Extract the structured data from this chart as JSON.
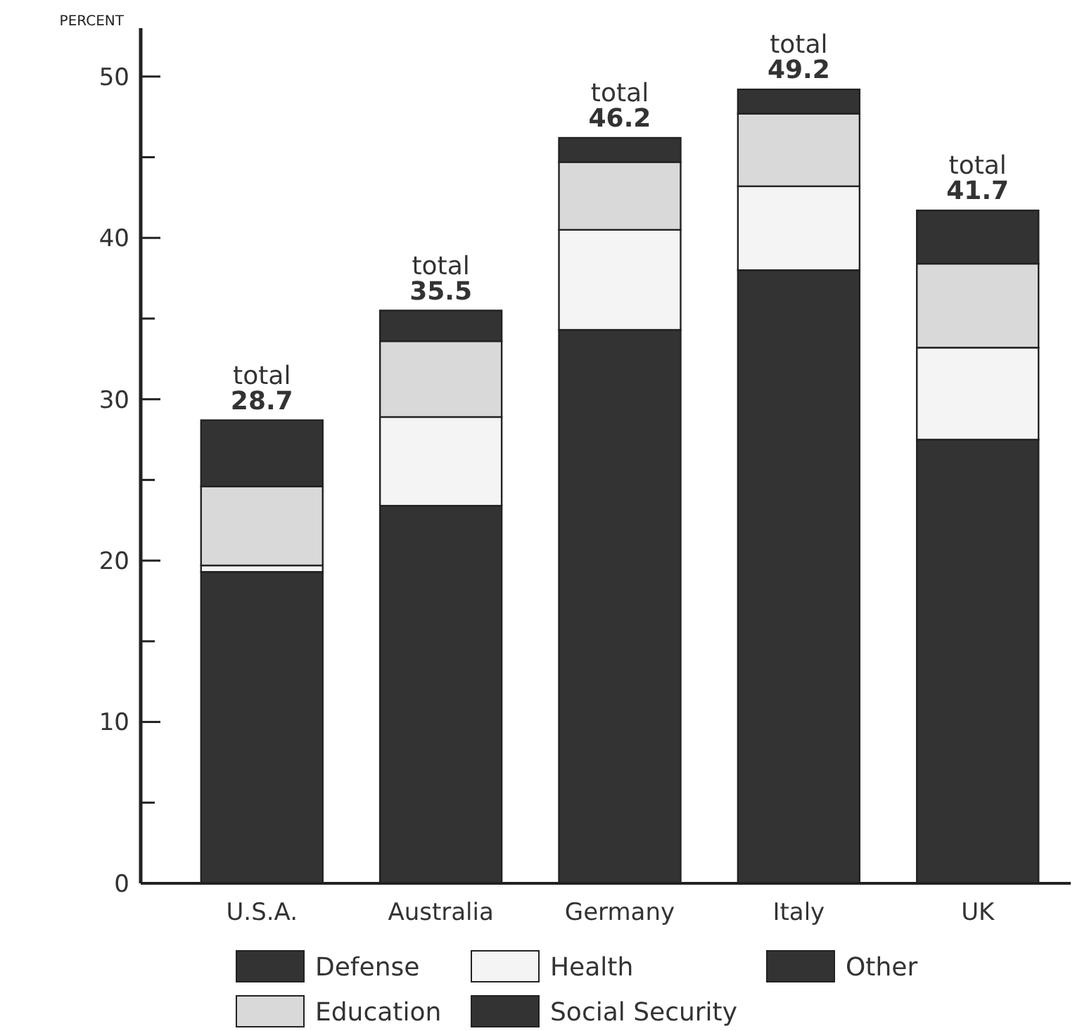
{
  "chart_data": {
    "type": "bar",
    "stacked": true,
    "ylabel": "PERCENT",
    "categories": [
      "U.S.A.",
      "Australia",
      "Germany",
      "Italy",
      "UK"
    ],
    "series": [
      {
        "name": "Social Security",
        "color": "#333333",
        "values": [
          19.3,
          23.4,
          34.3,
          38.0,
          27.5
        ]
      },
      {
        "name": "Health",
        "color": "#f4f4f4",
        "values": [
          0.4,
          5.5,
          6.2,
          5.2,
          5.7
        ]
      },
      {
        "name": "Education",
        "color": "#d9d9d9",
        "values": [
          4.9,
          4.7,
          4.2,
          4.5,
          5.2
        ]
      },
      {
        "name": "Defense",
        "color": "#333333",
        "values": [
          4.1,
          1.9,
          1.5,
          1.5,
          3.3
        ]
      },
      {
        "name": "Other",
        "color": "#333333",
        "values": [
          null,
          null,
          null,
          null,
          null
        ]
      }
    ],
    "totals": [
      "total 28.7",
      "total 35.5",
      "total 46.2",
      "total 49.2",
      "total 41.7"
    ],
    "ylim": [
      0,
      53
    ],
    "yticks": [
      0,
      {
        "value": 5,
        "label": null
      },
      10,
      {
        "value": 15,
        "label": null
      },
      20,
      {
        "value": 25,
        "label": null
      },
      30,
      {
        "value": 35,
        "label": null
      },
      40,
      {
        "value": 45,
        "label": null
      },
      50
    ],
    "grid": false,
    "legend": "bottom"
  }
}
